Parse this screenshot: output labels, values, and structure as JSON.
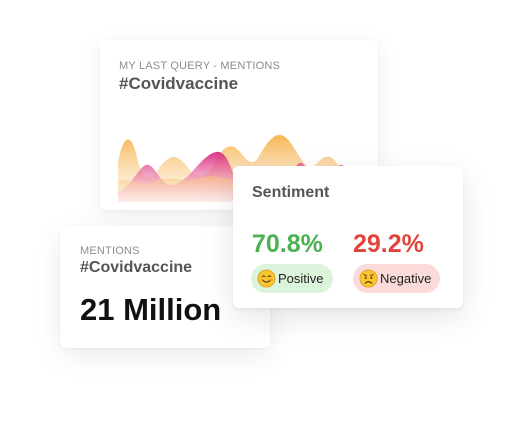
{
  "query_card": {
    "caption": "MY LAST QUERY - MENTIONS",
    "hashtag": "#Covidvaccine"
  },
  "mentions_card": {
    "caption": "MENTIONS",
    "hashtag": "#Covidvaccine",
    "total": "21 Million"
  },
  "sentiment_card": {
    "title": "Sentiment",
    "positive": {
      "percent": "70.8%",
      "label": "Positive",
      "icon": "smiling-face-icon",
      "color": "#4caf50",
      "pill_color": "#dcf4dc"
    },
    "negative": {
      "percent": "29.2%",
      "label": "Negative",
      "icon": "worried-face-icon",
      "color": "#e0453b",
      "pill_color": "#fbdada"
    }
  },
  "colors": {
    "wave_orange": "#f7b24a",
    "wave_magenta": "#d8287e"
  }
}
